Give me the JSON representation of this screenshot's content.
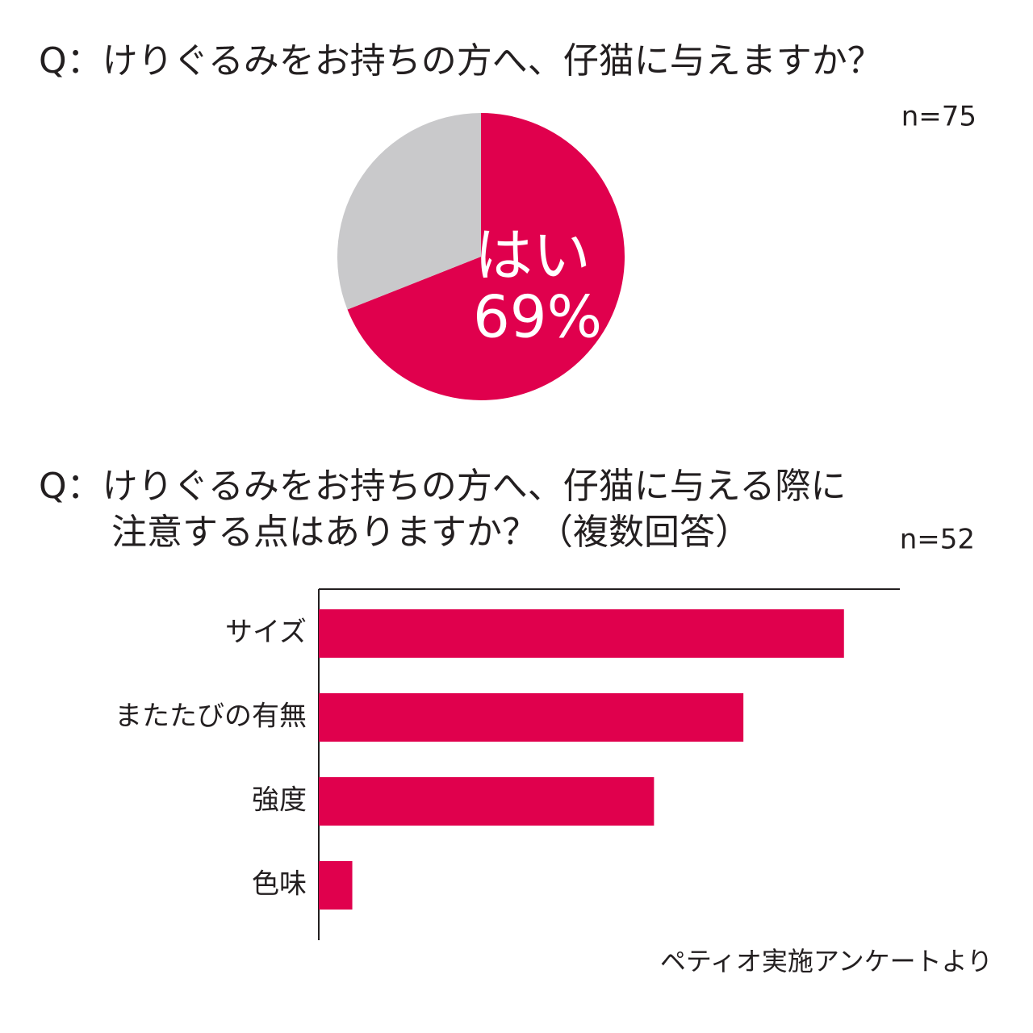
{
  "chart_data": [
    {
      "type": "pie",
      "title": "Q：けりぐるみをお持ちの方へ、仔猫に与えますか？",
      "subtitle": "n=75",
      "categories": [
        "はい",
        null
      ],
      "values": [
        69,
        31
      ],
      "value_labels": [
        "69%",
        null
      ],
      "colors": [
        "#e0004d",
        "#c9c9cb"
      ]
    },
    {
      "type": "barh",
      "title": [
        "Q：けりぐるみをお持ちの方へ、仔猫に与える際に",
        "注意する点はありますか？（複数回答）"
      ],
      "subtitle": "n=52",
      "categories": [
        "サイズ",
        "またたびの有無",
        "強度",
        "色味"
      ],
      "values": [
        47,
        38,
        30,
        3
      ],
      "xlim": [
        0,
        52
      ],
      "color": "#e0004d",
      "source": "ペティオ実施アンケートより"
    }
  ]
}
